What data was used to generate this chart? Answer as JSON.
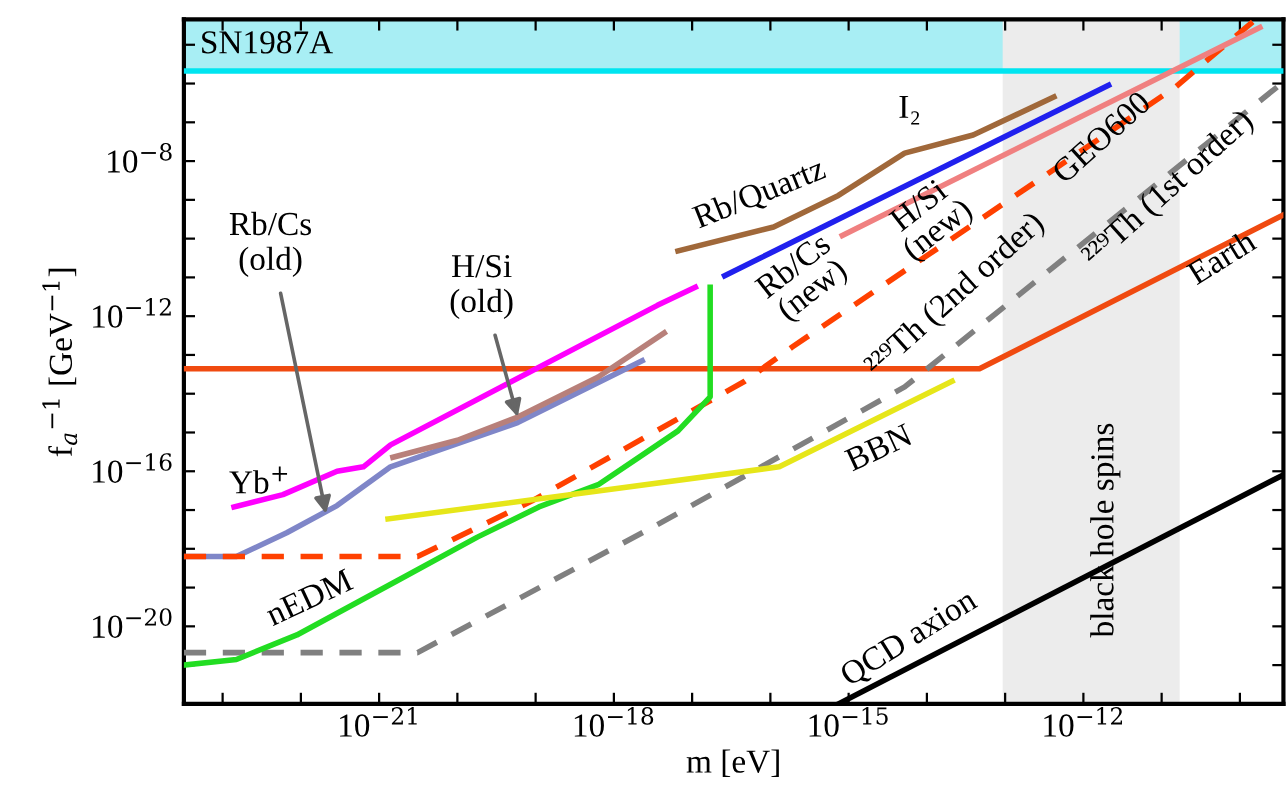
{
  "chart_data": {
    "type": "line",
    "xlabel": "m [eV]",
    "ylabel": "f$_{a}$$^{−1}$ [GeV$^{−1}$]",
    "log": "xy",
    "grid": false,
    "legend": false,
    "xlim": [
      3.2e-24,
      3.6e-10
    ],
    "ylim": [
      1e-22,
      4.5e-05
    ],
    "xticks": [
      {
        "value": 1e-23,
        "label": null
      },
      {
        "value": 1e-22,
        "label": null
      },
      {
        "value": 1e-21,
        "label": "10$^{−21}$"
      },
      {
        "value": 1e-20,
        "label": null
      },
      {
        "value": 1e-19,
        "label": null
      },
      {
        "value": 1e-18,
        "label": "10$^{−18}$"
      },
      {
        "value": 1e-17,
        "label": null
      },
      {
        "value": 1e-16,
        "label": null
      },
      {
        "value": 1e-15,
        "label": "10$^{−15}$"
      },
      {
        "value": 1e-14,
        "label": null
      },
      {
        "value": 1e-13,
        "label": null
      },
      {
        "value": 1e-12,
        "label": "10$^{−12}$"
      },
      {
        "value": 1e-11,
        "label": null
      },
      {
        "value": 1e-10,
        "label": null
      }
    ],
    "yticks": [
      {
        "value": 1e-22,
        "label": null
      },
      {
        "value": 1e-21,
        "label": null
      },
      {
        "value": 1e-20,
        "label": "10$^{−20}$"
      },
      {
        "value": 1e-19,
        "label": null
      },
      {
        "value": 1e-18,
        "label": null
      },
      {
        "value": 1e-17,
        "label": null
      },
      {
        "value": 1e-16,
        "label": "10$^{−16}$"
      },
      {
        "value": 1e-15,
        "label": null
      },
      {
        "value": 1e-14,
        "label": null
      },
      {
        "value": 1e-13,
        "label": null
      },
      {
        "value": 1e-12,
        "label": "10$^{−12}$"
      },
      {
        "value": 1e-11,
        "label": null
      },
      {
        "value": 1e-10,
        "label": null
      },
      {
        "value": 1e-09,
        "label": null
      },
      {
        "value": 1e-08,
        "label": "10$^{−8}$"
      },
      {
        "value": 1e-07,
        "label": null
      },
      {
        "value": 1e-06,
        "label": null
      },
      {
        "value": 1e-05,
        "label": null
      }
    ],
    "series": [
      {
        "color": "#f04a10",
        "line_style": "solid",
        "x": [
          3.2e-24,
          4.7e-14,
          3.6e-10
        ],
        "values": [
          4.4e-14,
          4.4e-14,
          4.1e-10
        ]
      },
      {
        "color": "#ff00ff",
        "line_style": "solid",
        "x": [
          1.4e-23,
          5.9e-23,
          2.9e-22,
          6.3e-22,
          1.4e-21,
          3.6e-18,
          1.1e-17
        ],
        "values": [
          1.2e-17,
          2.5e-17,
          1e-16,
          1.3e-16,
          4.8e-16,
          1.9e-12,
          5.6e-12
        ]
      },
      {
        "color": "#7f86c8",
        "line_style": "solid",
        "x": [
          3.2e-24,
          1.5e-23,
          6.6e-23,
          2.9e-22,
          1.4e-21,
          5.9e-20,
          2.3e-18
        ],
        "values": [
          6.3e-19,
          6.3e-19,
          2.6e-18,
          1.3e-17,
          1.3e-16,
          1.8e-15,
          7.1e-14
        ]
      },
      {
        "color": "#b8807a",
        "line_style": "solid",
        "x": [
          1.5e-21,
          1e-20,
          5.9e-20,
          6.3e-19,
          4.4e-18
        ],
        "values": [
          2.3e-16,
          6.3e-16,
          2.5e-15,
          2.7e-14,
          3.7e-13
        ]
      },
      {
        "color": "#ff4000",
        "line_style": "dashed",
        "x": [
          3.2e-24,
          3.1e-21,
          8.9e-20,
          4.7e-17,
          1.9e-16,
          1.5e-11,
          1.5e-10
        ],
        "values": [
          6.3e-19,
          6.3e-19,
          1.7e-17,
          2.1e-14,
          1.6e-13,
          8.1e-07,
          4.1e-05
        ]
      },
      {
        "color": "#808080",
        "line_style": "dashed",
        "x": [
          3.2e-24,
          3.1e-21,
          3.6e-18,
          5.2e-15,
          3.6e-10
        ],
        "values": [
          2.1e-21,
          2.1e-21,
          4.2e-18,
          1.5e-14,
          1.1e-06
        ]
      },
      {
        "color": "#22dd22",
        "line_style": "solid",
        "x": [
          3.2e-24,
          1.5e-23,
          8.9e-23,
          1.7e-21,
          1.8e-20,
          1.1e-19,
          6.3e-19,
          2.3e-18,
          6.6e-18,
          1.7e-17,
          1.7e-17
        ],
        "values": [
          1e-21,
          1.4e-21,
          6e-21,
          1.5e-19,
          2e-18,
          1.2e-17,
          4.5e-17,
          2.6e-16,
          1.1e-15,
          8.3e-15,
          5.6e-12
        ]
      },
      {
        "color": "#e6e619",
        "line_style": "solid",
        "x": [
          1.3e-21,
          1.3e-16,
          2.1e-14
        ],
        "values": [
          5.9e-18,
          1.3e-16,
          2.1e-14
        ]
      },
      {
        "color": "#2020ee",
        "line_style": "solid",
        "x": [
          2.6e-17,
          2.1e-12
        ],
        "values": [
          1.1e-11,
          9.1e-07
        ]
      },
      {
        "color": "#f08080",
        "line_style": "solid",
        "x": [
          8.3e-16,
          1.8e-10
        ],
        "values": [
          1.2e-10,
          2.8e-05
        ]
      },
      {
        "color": "#a0683a",
        "line_style": "solid",
        "x": [
          6.6e-18,
          1.1e-16,
          7.4e-16,
          5.2e-15,
          3.9e-14,
          4.2e-13
        ],
        "values": [
          4.8e-11,
          2e-10,
          1.3e-09,
          1.6e-08,
          4.7e-08,
          4.5e-07
        ]
      },
      {
        "color": "#000000",
        "line_style": "solid",
        "x": [
          7.4e-16,
          3.6e-10
        ],
        "values": [
          1e-22,
          8.1e-17
        ]
      }
    ],
    "ref_lines": [
      {
        "axis": "y",
        "value": 2.1e-06,
        "color": "#00e5f0"
      }
    ],
    "bands": [
      {
        "axis": "y",
        "from": 2.1e-06,
        "to": 4.5e-05,
        "label": "SN1987A",
        "color": "#a8eef4"
      },
      {
        "axis": "x",
        "from": 9.3e-14,
        "to": 1.7e-11,
        "color": "#ececec"
      }
    ],
    "annotations": [
      {
        "text": "Rb/Cs\n(old)",
        "x": 2.1e-22,
        "y": 8e-18
      },
      {
        "text": "H/Si\n(old)",
        "x": 5.9e-20,
        "y": 2.5e-15
      },
      "Yb$^{+}$",
      "nEDM",
      "BBN",
      "QCD axion",
      "black hole spins",
      "Earth",
      "²²⁹Th (2nd order)",
      "²²⁹Th (1st order)",
      "Rb/Cs\n(new)",
      "H/Si\n(new)",
      "Rb/Quartz",
      "GEO600",
      "I₂"
    ]
  }
}
